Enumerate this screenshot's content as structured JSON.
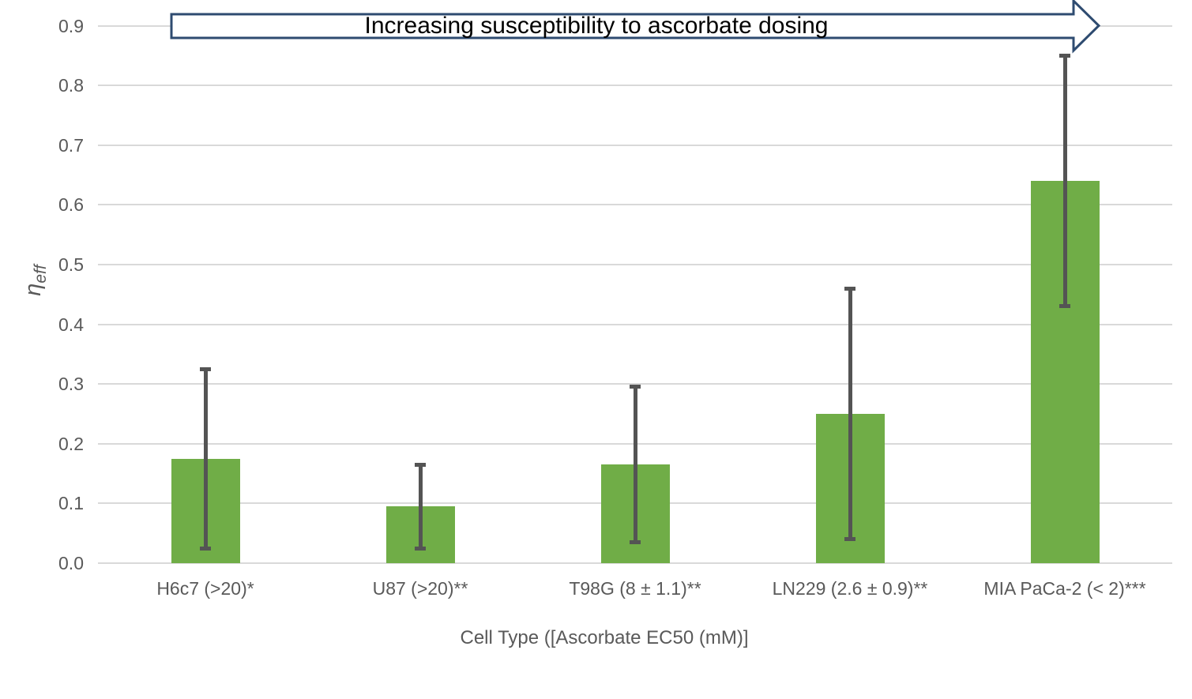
{
  "chart_data": {
    "type": "bar",
    "annotation": "Increasing susceptibility to ascorbate dosing",
    "xlabel": "Cell Type ([Ascorbate EC50 (mM)]",
    "ylabel": {
      "symbol": "η",
      "subscript": "eff"
    },
    "categories": [
      "H6c7 (>20)*",
      "U87 (>20)**",
      "T98G (8 ± 1.1)**",
      "LN229 (2.6 ± 0.9)**",
      "MIA PaCa-2 (< 2)***"
    ],
    "values": [
      0.175,
      0.095,
      0.165,
      0.25,
      0.64
    ],
    "error_low": [
      0.025,
      0.025,
      0.035,
      0.04,
      0.43
    ],
    "error_high": [
      0.325,
      0.165,
      0.295,
      0.46,
      0.85
    ],
    "ylim": [
      0.0,
      0.9
    ],
    "ytick_labels": [
      "0.0",
      "0.1",
      "0.2",
      "0.3",
      "0.4",
      "0.5",
      "0.6",
      "0.7",
      "0.8",
      "0.9"
    ],
    "grid": true,
    "legend": "none",
    "colors": {
      "bar": "#70AD47",
      "error_bar": "#545454",
      "gridline": "#D9D9D9",
      "axis_text": "#595959",
      "annotation_text": "#000000",
      "arrow_outline": "#2E4B70",
      "arrow_fill": "#FFFFFF",
      "background": "#FFFFFF"
    }
  }
}
